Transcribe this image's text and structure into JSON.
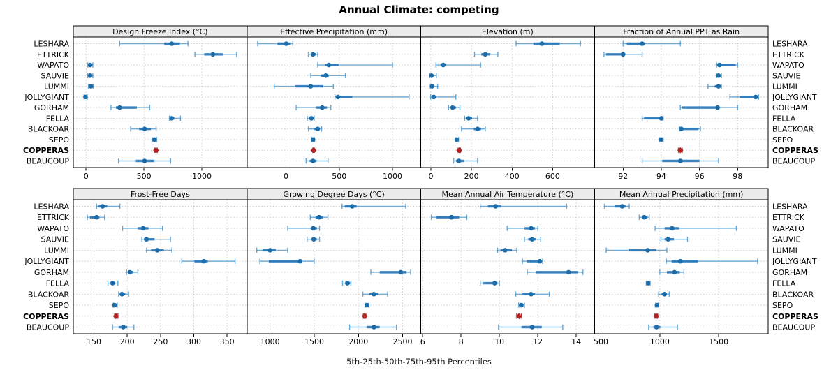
{
  "title": "Annual Climate: competing",
  "caption": "5th-25th-50th-75th-95th Percentiles",
  "colors": {
    "point": "#1b6ca8",
    "iqr": "#2171b5",
    "whisker": "#4a97cd",
    "highlight": "#b22222",
    "strip_bg": "#ececec",
    "panel_border": "#000000",
    "grid": "#c9c9c9",
    "text": "#000000"
  },
  "chart_data": {
    "type": "dotplot-percentiles",
    "layout": "2 rows x 4 cols",
    "percentiles": [
      5,
      25,
      50,
      75,
      95
    ],
    "sites": [
      "LESHARA",
      "ETTRICK",
      "WAPATO",
      "SAUVIE",
      "LUMMI",
      "JOLLYGIANT",
      "GORHAM",
      "FELLA",
      "BLACKOAR",
      "SEPO",
      "COPPERAS",
      "BEAUCOUP"
    ],
    "highlight_site": "COPPERAS",
    "panels": [
      {
        "title": "Design Freeze Index (°C)",
        "row": 0,
        "col": 0,
        "xlim": [
          -110,
          1390
        ],
        "ticks": [
          0,
          500,
          1000
        ],
        "values": [
          [
            290,
            675,
            740,
            810,
            880
          ],
          [
            940,
            1020,
            1095,
            1180,
            1300
          ],
          [
            15,
            28,
            36,
            44,
            58
          ],
          [
            15,
            28,
            36,
            44,
            58
          ],
          [
            20,
            32,
            42,
            50,
            62
          ],
          [
            -18,
            -10,
            -5,
            2,
            10
          ],
          [
            215,
            258,
            290,
            438,
            550
          ],
          [
            720,
            728,
            740,
            762,
            815
          ],
          [
            385,
            458,
            505,
            560,
            605
          ],
          [
            572,
            583,
            590,
            598,
            610
          ],
          [
            593,
            599,
            604,
            609,
            615
          ],
          [
            280,
            430,
            505,
            590,
            730
          ]
        ]
      },
      {
        "title": "Effective Precipitation (mm)",
        "row": 0,
        "col": 1,
        "xlim": [
          -365,
          1265
        ],
        "ticks": [
          0,
          500,
          1000
        ],
        "values": [
          [
            -265,
            -80,
            2,
            40,
            65
          ],
          [
            210,
            234,
            254,
            280,
            298
          ],
          [
            298,
            364,
            402,
            494,
            1000
          ],
          [
            233,
            324,
            374,
            402,
            558
          ],
          [
            -110,
            87,
            232,
            350,
            445
          ],
          [
            460,
            480,
            488,
            622,
            1155
          ],
          [
            96,
            286,
            340,
            385,
            421
          ],
          [
            200,
            226,
            239,
            256,
            265
          ],
          [
            211,
            265,
            298,
            314,
            335
          ],
          [
            244,
            250,
            255,
            261,
            268
          ],
          [
            251,
            255,
            259,
            263,
            267
          ],
          [
            189,
            222,
            254,
            287,
            395
          ]
        ]
      },
      {
        "title": "Elevation (m)",
        "row": 0,
        "col": 2,
        "xlim": [
          -50,
          806
        ],
        "ticks": [
          0,
          200,
          400,
          600
        ],
        "values": [
          [
            420,
            505,
            547,
            635,
            737
          ],
          [
            215,
            248,
            268,
            293,
            330
          ],
          [
            25,
            47,
            61,
            72,
            245
          ],
          [
            -6,
            0,
            3,
            10,
            27
          ],
          [
            -3,
            2,
            6,
            13,
            33
          ],
          [
            -1,
            5,
            14,
            26,
            123
          ],
          [
            87,
            98,
            107,
            123,
            143
          ],
          [
            166,
            175,
            186,
            203,
            230
          ],
          [
            151,
            211,
            230,
            247,
            268
          ],
          [
            120,
            124,
            127,
            131,
            136
          ],
          [
            134,
            137,
            140,
            143,
            146
          ],
          [
            112,
            124,
            138,
            163,
            230
          ]
        ]
      },
      {
        "title": "Fraction of Annual PPT as Rain",
        "row": 0,
        "col": 3,
        "xlim": [
          90.5,
          99.6
        ],
        "ticks": [
          92,
          94,
          96,
          98
        ],
        "values": [
          [
            92.0,
            92.2,
            93.0,
            93.15,
            95.0
          ],
          [
            91.0,
            91.1,
            92.0,
            92.1,
            93.0
          ],
          [
            96.9,
            97.0,
            97.05,
            97.9,
            98.0
          ],
          [
            96.9,
            96.95,
            97.0,
            97.1,
            97.15
          ],
          [
            96.45,
            96.8,
            97.0,
            97.1,
            97.15
          ],
          [
            97.6,
            98.1,
            98.95,
            99.0,
            99.1
          ],
          [
            95.0,
            95.1,
            96.95,
            97.05,
            98.0
          ],
          [
            93.0,
            93.1,
            94.0,
            94.05,
            94.1
          ],
          [
            94.95,
            95.0,
            95.05,
            95.95,
            96.05
          ],
          [
            93.9,
            93.95,
            94.0,
            94.05,
            94.1
          ],
          [
            94.9,
            94.95,
            95.0,
            95.05,
            95.1
          ],
          [
            93.0,
            94.05,
            95.0,
            96.0,
            97.0
          ]
        ]
      },
      {
        "title": "Frost-Free Days",
        "row": 1,
        "col": 0,
        "xlim": [
          119,
          380
        ],
        "ticks": [
          150,
          200,
          250,
          300,
          350
        ],
        "values": [
          [
            154,
            157,
            163,
            170,
            189
          ],
          [
            140,
            144,
            154,
            158,
            166
          ],
          [
            193,
            216,
            224,
            232,
            253
          ],
          [
            222,
            225,
            229,
            241,
            265
          ],
          [
            229,
            236,
            245,
            255,
            267
          ],
          [
            282,
            301,
            315,
            321,
            362
          ],
          [
            199,
            201,
            204,
            209,
            216
          ],
          [
            171,
            175,
            178,
            182,
            186
          ],
          [
            187,
            189,
            192,
            197,
            202
          ],
          [
            179,
            180,
            181,
            183,
            185
          ],
          [
            181,
            182,
            183,
            184,
            186
          ],
          [
            178,
            187,
            194,
            200,
            210
          ]
        ]
      },
      {
        "title": "Growing Degree Days (°C)",
        "row": 1,
        "col": 1,
        "xlim": [
          740,
          2705
        ],
        "ticks": [
          1000,
          1500,
          2000,
          2500
        ],
        "values": [
          [
            1815,
            1845,
            1930,
            1980,
            2535
          ],
          [
            1455,
            1515,
            1555,
            1600,
            1655
          ],
          [
            1200,
            1460,
            1490,
            1530,
            1560
          ],
          [
            1420,
            1465,
            1495,
            1530,
            1560
          ],
          [
            850,
            915,
            1000,
            1065,
            1200
          ],
          [
            885,
            985,
            1340,
            1360,
            1500
          ],
          [
            2140,
            2240,
            2480,
            2545,
            2590
          ],
          [
            1820,
            1850,
            1875,
            1905,
            1915
          ],
          [
            2050,
            2125,
            2175,
            2225,
            2330
          ],
          [
            2075,
            2088,
            2096,
            2105,
            2118
          ],
          [
            2055,
            2063,
            2070,
            2078,
            2085
          ],
          [
            1900,
            2095,
            2175,
            2240,
            2430
          ]
        ]
      },
      {
        "title": "Mean Annual Air Temperature (°C)",
        "row": 1,
        "col": 2,
        "xlim": [
          5.9,
          14.95
        ],
        "ticks": [
          6,
          8,
          10,
          12,
          14
        ],
        "values": [
          [
            9.0,
            9.4,
            9.8,
            10.1,
            13.5
          ],
          [
            6.45,
            6.7,
            7.5,
            7.9,
            8.3
          ],
          [
            10.4,
            11.3,
            11.65,
            11.85,
            12.0
          ],
          [
            11.3,
            11.5,
            11.7,
            11.9,
            12.15
          ],
          [
            9.9,
            10.05,
            10.3,
            10.65,
            10.9
          ],
          [
            11.2,
            11.45,
            12.1,
            12.2,
            12.25
          ],
          [
            11.45,
            11.9,
            13.6,
            14.1,
            14.35
          ],
          [
            9.0,
            9.15,
            9.75,
            9.9,
            10.0
          ],
          [
            10.85,
            11.2,
            11.65,
            11.85,
            12.6
          ],
          [
            11.0,
            11.08,
            11.14,
            11.2,
            11.3
          ],
          [
            10.9,
            10.96,
            11.02,
            11.08,
            11.14
          ],
          [
            9.95,
            11.15,
            11.7,
            12.2,
            13.3
          ]
        ]
      },
      {
        "title": "Mean Annual Precipitation (mm)",
        "row": 1,
        "col": 3,
        "xlim": [
          445,
          1920
        ],
        "ticks": [
          500,
          1000,
          1500
        ],
        "values": [
          [
            530,
            615,
            680,
            710,
            740
          ],
          [
            825,
            850,
            867,
            895,
            910
          ],
          [
            960,
            1040,
            1105,
            1165,
            1650
          ],
          [
            1010,
            1040,
            1070,
            1120,
            1235
          ],
          [
            545,
            740,
            897,
            970,
            1060
          ],
          [
            1055,
            1100,
            1175,
            1325,
            1830
          ],
          [
            1000,
            1060,
            1125,
            1170,
            1205
          ],
          [
            885,
            893,
            901,
            910,
            918
          ],
          [
            990,
            1015,
            1040,
            1060,
            1080
          ],
          [
            965,
            970,
            976,
            982,
            988
          ],
          [
            958,
            964,
            970,
            976,
            982
          ],
          [
            905,
            945,
            972,
            1005,
            1150
          ]
        ]
      }
    ]
  }
}
